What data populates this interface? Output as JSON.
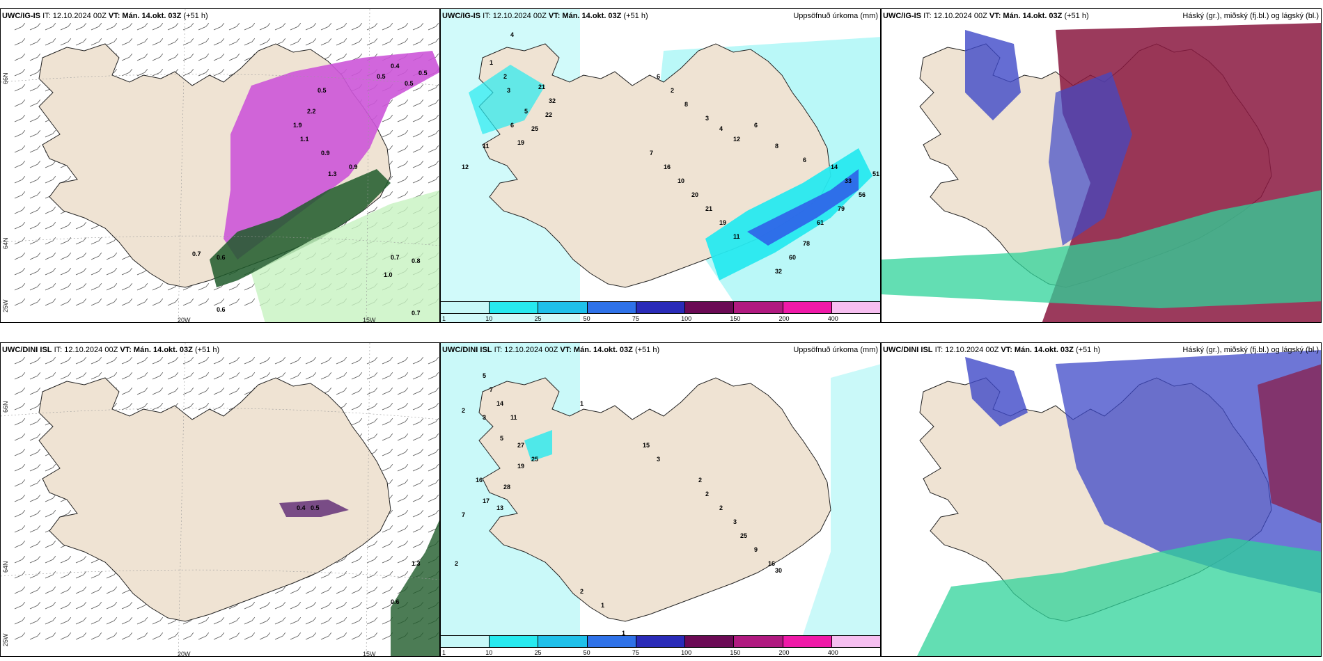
{
  "colors": {
    "land": "#efe3d3",
    "sea": "#ffffff",
    "precip_light": "#b3f7f7",
    "precip_med": "#27e9ef",
    "precip_dark": "#1fb8e8",
    "precip_blue": "#2f62e8",
    "precip_navy": "#2a2bb8",
    "snow_magenta": "#cc55d8",
    "snow_dark": "#6b3b7d",
    "rain_green": "#c7f2c0",
    "rain_dark": "#1f5b2a",
    "cloud_high": "#8a1840",
    "cloud_mid": "#3e48c8",
    "cloud_low": "#2fd39a"
  },
  "panels": [
    {
      "id": "p1",
      "title_model": "UWC/IG-IS",
      "title_it": "IT: 12.10.2024 00Z",
      "title_vt": "VT: Mán. 14.okt. 03Z",
      "title_extra": "(+51 h)",
      "right_label": "",
      "kind": "wind",
      "axis_x": [
        "20W",
        "15W"
      ],
      "axis_y": [
        "66N",
        "64N",
        "25W"
      ],
      "labels": [
        "0.4",
        "0.5",
        "0.5",
        "0.5",
        "0.5",
        "2.2",
        "1.9",
        "1.1",
        "0.9",
        "0.9",
        "1.3",
        "0.7",
        "0.6",
        "0.7",
        "0.8",
        "1.0",
        "0.6",
        "0.7"
      ]
    },
    {
      "id": "p2",
      "title_model": "UWC/IG-IS",
      "title_it": "IT: 12.10.2024 00Z",
      "title_vt": "VT: Mán. 14.okt. 03Z",
      "title_extra": "(+51 h)",
      "right_label": "Uppsöfnuð úrkoma (mm)",
      "kind": "precip",
      "labels": [
        "4",
        "1",
        "2",
        "3",
        "5",
        "6",
        "11",
        "21",
        "32",
        "22",
        "25",
        "19",
        "12",
        "6",
        "2",
        "8",
        "3",
        "4",
        "12",
        "6",
        "8",
        "6",
        "14",
        "33",
        "56",
        "51",
        "79",
        "61",
        "78",
        "60",
        "32",
        "11",
        "19",
        "21",
        "20",
        "10",
        "16",
        "7"
      ],
      "colorbar": [
        "1",
        "10",
        "25",
        "50",
        "75",
        "100",
        "150",
        "200",
        "400"
      ]
    },
    {
      "id": "p3",
      "title_model": "UWC/IG-IS",
      "title_it": "IT: 12.10.2024 00Z",
      "title_vt": "VT: Mán. 14.okt. 03Z",
      "title_extra": "(+51 h)",
      "right_label": "Háský (gr.), miðský (fj.bl.) og lágský (bl.)",
      "kind": "cloud"
    },
    {
      "id": "p4",
      "title_model": "UWC/DINI ISL",
      "title_it": "IT: 12.10.2024 00Z",
      "title_vt": "VT: Mán. 14.okt. 03Z",
      "title_extra": "(+51 h)",
      "right_label": "",
      "kind": "wind",
      "axis_x": [
        "20W",
        "15W"
      ],
      "axis_y": [
        "66N",
        "64N",
        "25W"
      ],
      "labels": [
        "0.4",
        "0.5",
        "1.3",
        "0.6"
      ]
    },
    {
      "id": "p5",
      "title_model": "UWC/DINI ISL",
      "title_it": "IT: 12.10.2024 00Z",
      "title_vt": "VT: Mán. 14.okt. 03Z",
      "title_extra": "(+51 h)",
      "right_label": "Uppsöfnuð úrkoma (mm)",
      "kind": "precip",
      "labels": [
        "5",
        "7",
        "2",
        "3",
        "14",
        "11",
        "5",
        "27",
        "25",
        "19",
        "16",
        "28",
        "17",
        "13",
        "7",
        "2",
        "15",
        "3",
        "1",
        "2",
        "2",
        "2",
        "3",
        "25",
        "9",
        "16",
        "30",
        "2",
        "1",
        "1"
      ],
      "colorbar": [
        "1",
        "10",
        "25",
        "50",
        "75",
        "100",
        "150",
        "200",
        "400"
      ]
    },
    {
      "id": "p6",
      "title_model": "UWC/DINI ISL",
      "title_it": "IT: 12.10.2024 00Z",
      "title_vt": "VT: Mán. 14.okt. 03Z",
      "title_extra": "(+51 h)",
      "right_label": "Háský (gr.), miðský (fj.bl.) og lágský (bl.)",
      "kind": "cloud"
    }
  ]
}
